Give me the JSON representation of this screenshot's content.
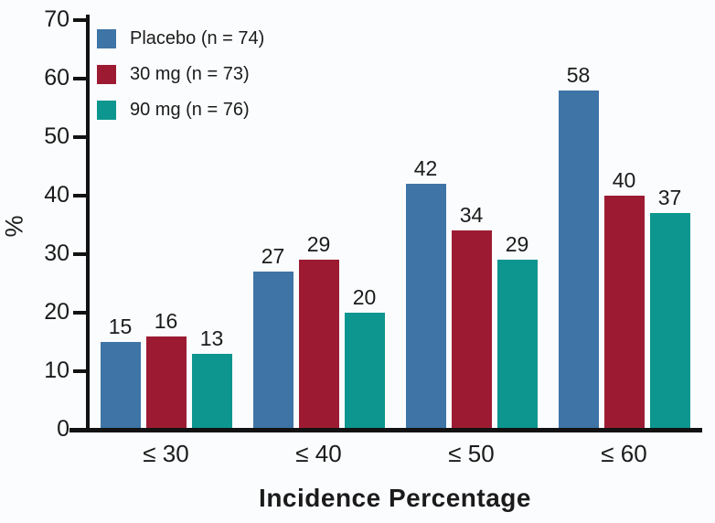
{
  "chart_data": {
    "type": "bar",
    "title": "",
    "xlabel": "Incidence Percentage",
    "ylabel": "%",
    "ylim": [
      0,
      70
    ],
    "yticks": [
      0,
      10,
      20,
      30,
      40,
      50,
      60,
      70
    ],
    "categories": [
      "≤ 30",
      "≤ 40",
      "≤ 50",
      "≤ 60"
    ],
    "series": [
      {
        "name": "Placebo (n = 74)",
        "key": "placebo",
        "color": "#3E74A6",
        "values": [
          15,
          27,
          42,
          58
        ]
      },
      {
        "name": "30 mg (n = 73)",
        "key": "30mg",
        "color": "#9C1B33",
        "values": [
          16,
          29,
          34,
          40
        ]
      },
      {
        "name": "90 mg (n = 76)",
        "key": "90mg",
        "color": "#0C968F",
        "values": [
          13,
          20,
          29,
          37
        ]
      }
    ],
    "legend_position": "top-left",
    "grid": false,
    "value_labels": true,
    "axis_color": "#121212",
    "background_color": "#fbfcfd"
  }
}
